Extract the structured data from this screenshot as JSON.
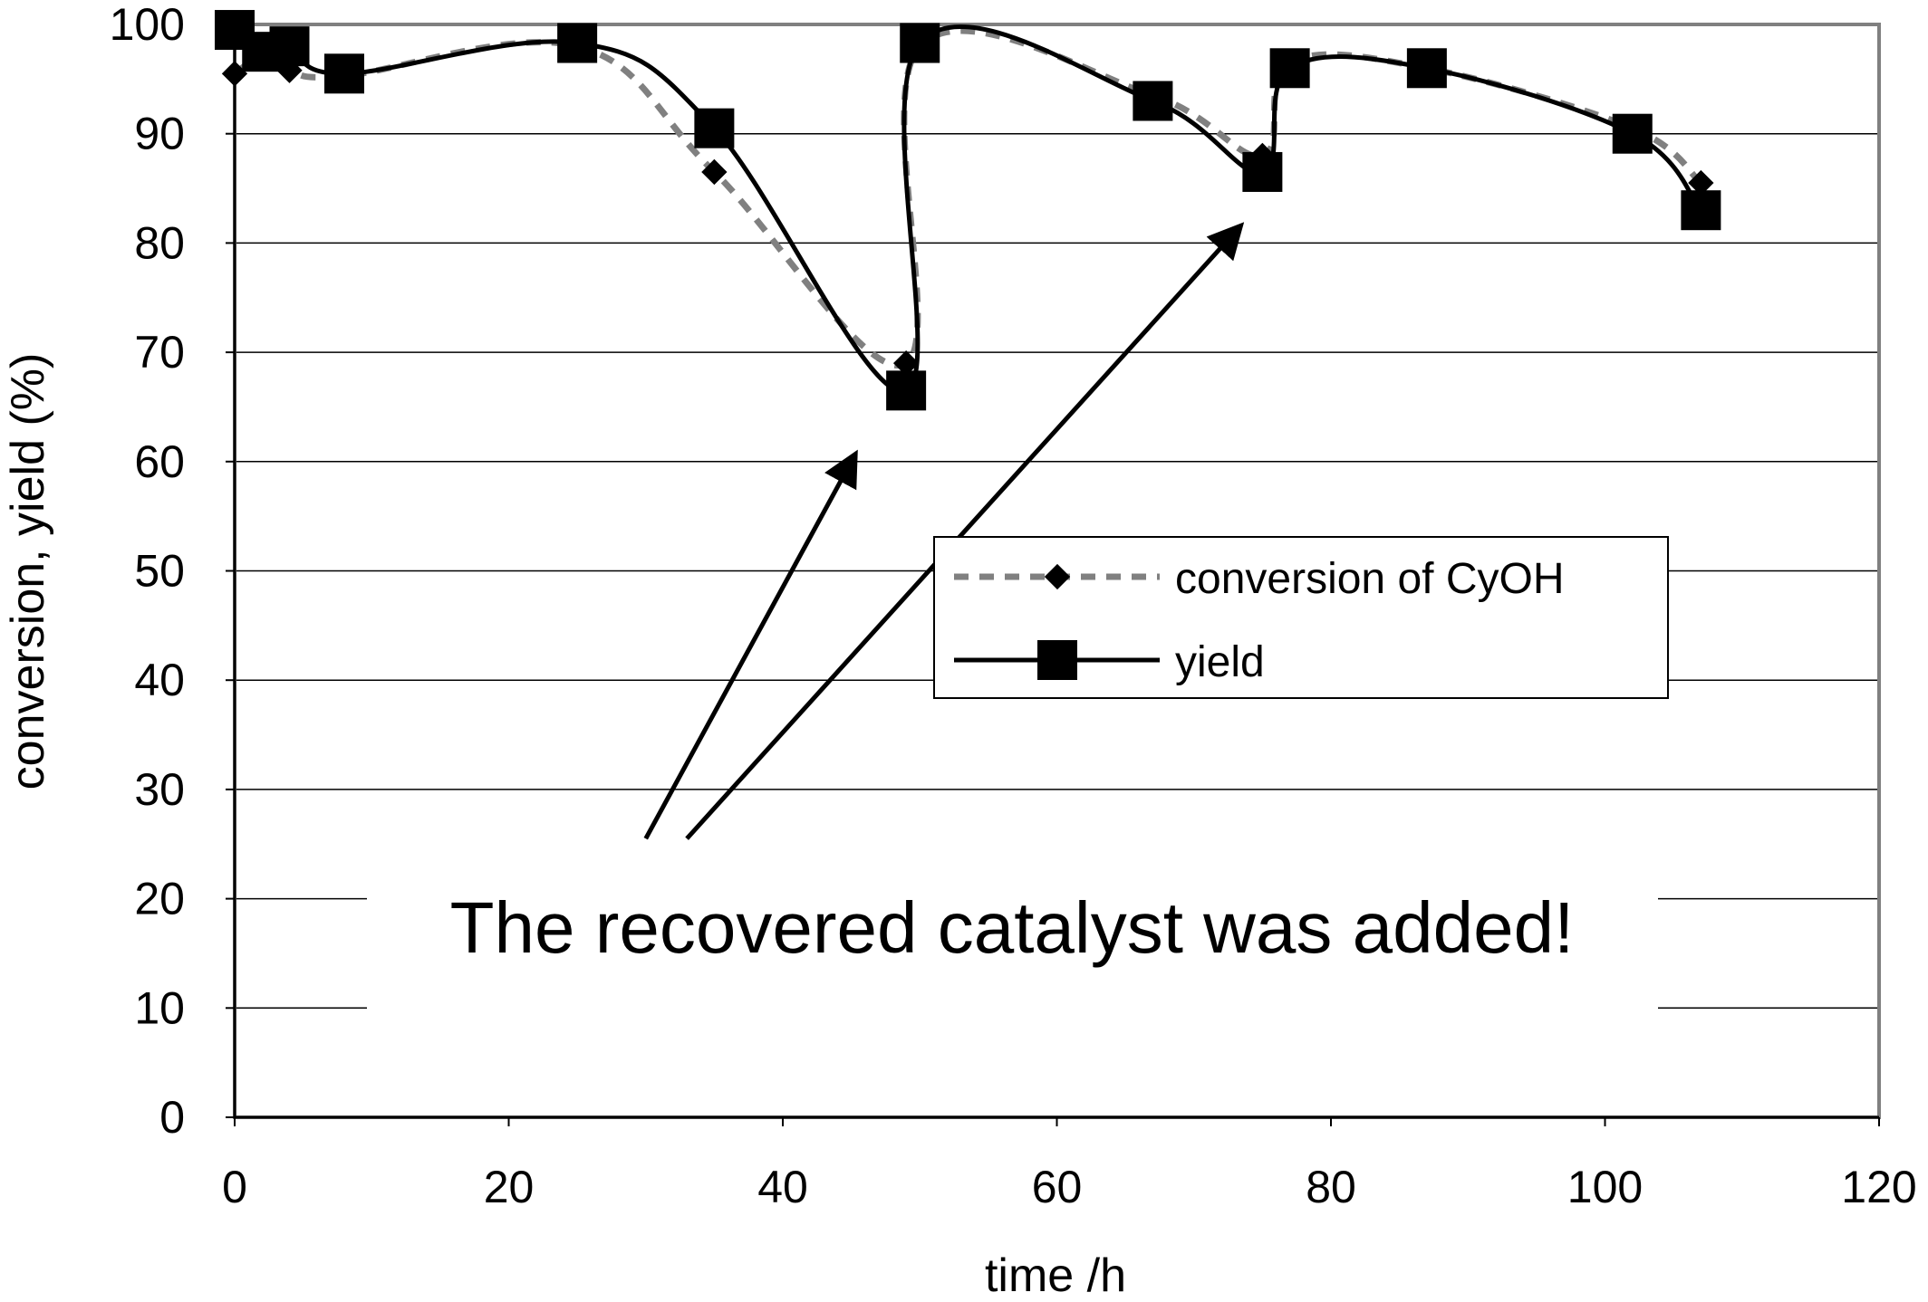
{
  "chart_data": {
    "type": "line",
    "xlabel": "time /h",
    "ylabel": "conversion, yield (%)",
    "xlim": [
      0,
      120
    ],
    "ylim": [
      0,
      100
    ],
    "xticks": [
      0,
      20,
      40,
      60,
      80,
      100,
      120
    ],
    "yticks": [
      0,
      10,
      20,
      30,
      40,
      50,
      60,
      70,
      80,
      90,
      100
    ],
    "grid": "horizontal",
    "legend_position": "center-right",
    "series": [
      {
        "name": "conversion of CyOH",
        "style": "dashed",
        "marker": "diamond",
        "color": "#808080",
        "marker_color": "#000000",
        "x": [
          0,
          2,
          4,
          8,
          25,
          35,
          49,
          50,
          67,
          75,
          77,
          87,
          102,
          107
        ],
        "y": [
          95.5,
          97,
          95.8,
          95.3,
          98,
          86.5,
          69,
          98,
          93.5,
          88,
          96.5,
          96,
          90.5,
          85.5
        ]
      },
      {
        "name": "yield",
        "style": "solid",
        "marker": "square",
        "color": "#000000",
        "x": [
          0,
          2,
          4,
          8,
          25,
          35,
          49,
          50,
          67,
          75,
          77,
          87,
          102,
          107
        ],
        "y": [
          99.5,
          97.5,
          98,
          95.5,
          98.3,
          90.5,
          66.5,
          98.3,
          93,
          86.5,
          96,
          96,
          90,
          83
        ]
      }
    ],
    "annotation": {
      "text": "The recovered catalyst was added!",
      "arrow_targets": [
        {
          "x": 45,
          "y": 60
        },
        {
          "x": 73,
          "y": 81
        }
      ],
      "arrow_sources": [
        {
          "x": 30,
          "y": 25.5
        },
        {
          "x": 33,
          "y": 25.5
        }
      ]
    }
  }
}
